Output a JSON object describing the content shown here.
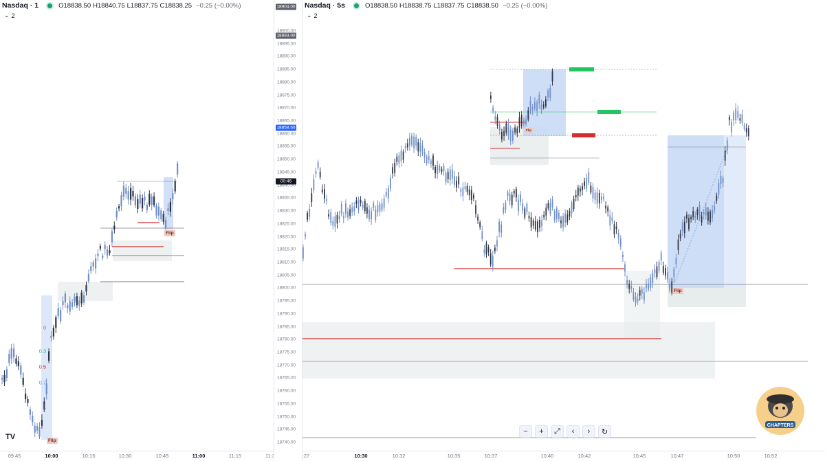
{
  "left_chart": {
    "symbol": "Nasdaq · 1",
    "ohlc": [
      {
        "k": "O",
        "v": "18838.50"
      },
      {
        "k": "H",
        "v": "18840.75"
      },
      {
        "k": "L",
        "v": "18837.75"
      },
      {
        "k": "C",
        "v": "18838.25"
      }
    ],
    "change": "−0.25 (−0.00%)",
    "indicator_count": "2",
    "time_ticks": [
      {
        "label": "09:45",
        "bold": false
      },
      {
        "label": "10:00",
        "bold": true
      },
      {
        "label": "10:15",
        "bold": false
      },
      {
        "label": "10:30",
        "bold": false
      },
      {
        "label": "10:45",
        "bold": false
      },
      {
        "label": "11:00",
        "bold": true
      },
      {
        "label": "11:15",
        "bold": false
      },
      {
        "label": "11:3",
        "bold": false
      }
    ],
    "fib_levels": [
      {
        "label": "0",
        "color": "#787b86"
      },
      {
        "label": "0.3",
        "color": "#26a69a"
      },
      {
        "label": "0.5",
        "color": "#c62828"
      },
      {
        "label": "0.7",
        "color": "#5b8bd6"
      },
      {
        "label": "1",
        "color": "#787b86"
      }
    ],
    "flip_label": "Flip",
    "logo": "TV"
  },
  "right_chart": {
    "symbol": "Nasdaq · 5s",
    "ohlc": [
      {
        "k": "O",
        "v": "18838.50"
      },
      {
        "k": "H",
        "v": "18838.75"
      },
      {
        "k": "L",
        "v": "18837.75"
      },
      {
        "k": "C",
        "v": "18838.50"
      }
    ],
    "change": "−0.25 (−0.00%)",
    "indicator_count": "2",
    "time_ticks": [
      {
        "label": ":27",
        "bold": false
      },
      {
        "label": "10:30",
        "bold": true
      },
      {
        "label": "10:32",
        "bold": false
      },
      {
        "label": "10:35",
        "bold": false
      },
      {
        "label": "10:37",
        "bold": false
      },
      {
        "label": "10:40",
        "bold": false
      },
      {
        "label": "10:42",
        "bold": false
      },
      {
        "label": "10:45",
        "bold": false
      },
      {
        "label": "10:47",
        "bold": false
      },
      {
        "label": "10:50",
        "bold": false
      },
      {
        "label": "10:52",
        "bold": false
      }
    ],
    "flip_label": "Flip",
    "inset_flip_label": "Flip"
  },
  "price_axis": {
    "ticks": [
      "18900.00",
      "18895.00",
      "18890.00",
      "18885.00",
      "18880.00",
      "18875.00",
      "18870.00",
      "18865.00",
      "18860.00",
      "18855.00",
      "18850.00",
      "18845.00",
      "18840.00",
      "18835.00",
      "18830.00",
      "18825.00",
      "18820.00",
      "18815.00",
      "18810.00",
      "18805.00",
      "18800.00",
      "18795.00",
      "18790.00",
      "18785.00",
      "18780.00",
      "18775.00",
      "18770.00",
      "18765.00",
      "18760.00",
      "18755.00",
      "18750.00",
      "18745.00",
      "18740.00"
    ],
    "labels": [
      {
        "text": "18904.00",
        "color": "#5d606b"
      },
      {
        "text": "18893.00",
        "color": "#5d606b"
      },
      {
        "text": "18858.50",
        "color": "#2962ff"
      },
      {
        "text": "00:46",
        "color": "#131722"
      }
    ]
  },
  "toolbar": {
    "buttons": [
      {
        "name": "zoom-out-button",
        "icon": "minus-icon",
        "glyph": "−"
      },
      {
        "name": "zoom-in-button",
        "icon": "plus-icon",
        "glyph": "+"
      },
      {
        "name": "fullscreen-button",
        "icon": "expand-icon",
        "glyph": "⤢"
      },
      {
        "name": "scroll-left-button",
        "icon": "chevron-left-icon",
        "glyph": "‹"
      },
      {
        "name": "scroll-right-button",
        "icon": "chevron-right-icon",
        "glyph": "›"
      },
      {
        "name": "reset-button",
        "icon": "reset-icon",
        "glyph": "↻"
      }
    ]
  },
  "brand": {
    "text": "CHAPTERS"
  },
  "colors": {
    "up": "#6f8fc9",
    "down": "#2e3445",
    "zone_blue": "#c5d8f5",
    "zone_grey": "#e6ebeb",
    "level_red": "#d32f2f",
    "level_grey": "#787b86"
  }
}
